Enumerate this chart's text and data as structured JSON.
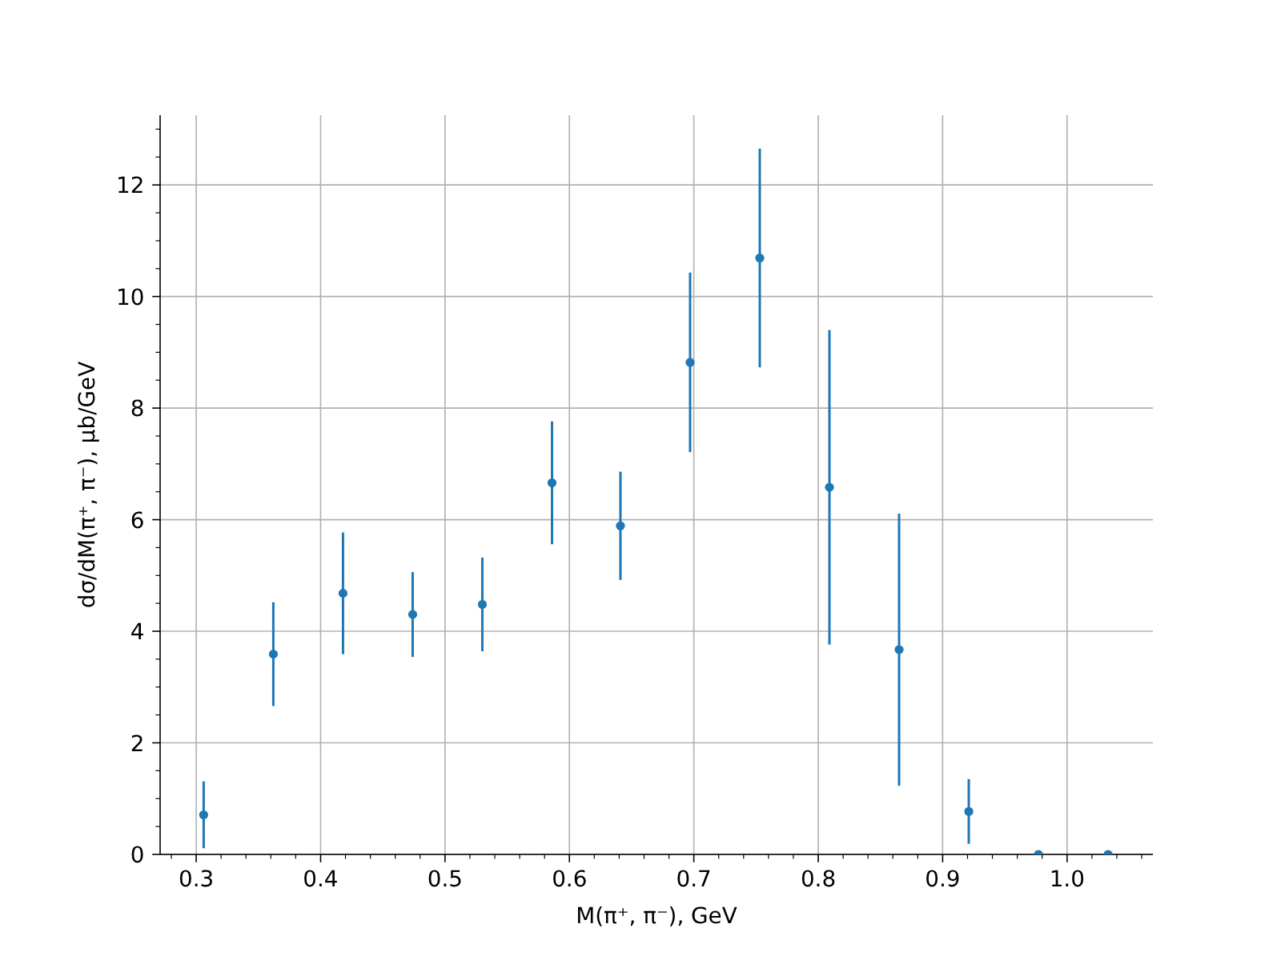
{
  "chart_data": {
    "type": "scatter",
    "xlabel": "M(π⁺, π⁻), GeV",
    "ylabel": "dσ/dM(π⁺, π⁻), μb/GeV",
    "x": [
      0.306,
      0.362,
      0.418,
      0.474,
      0.53,
      0.586,
      0.641,
      0.697,
      0.753,
      0.809,
      0.865,
      0.921,
      0.977,
      1.033
    ],
    "values": [
      0.71,
      3.59,
      4.68,
      4.3,
      4.48,
      6.66,
      5.89,
      8.82,
      10.69,
      6.58,
      3.67,
      0.77,
      0,
      0
    ],
    "errors": [
      0.6,
      0.93,
      1.09,
      0.76,
      0.84,
      1.1,
      0.97,
      1.61,
      1.96,
      2.82,
      2.44,
      0.58,
      null,
      null
    ],
    "color": "#1f77b4",
    "marker": "circle",
    "grid": true,
    "xlim": [
      0.271,
      1.069
    ],
    "ylim": [
      0,
      13.25
    ],
    "xticks": [
      {
        "value": 0.28,
        "label": null
      },
      0.3,
      {
        "value": 0.32,
        "label": null
      },
      {
        "value": 0.34,
        "label": null
      },
      {
        "value": 0.36,
        "label": null
      },
      {
        "value": 0.38,
        "label": null
      },
      0.4,
      {
        "value": 0.42,
        "label": null
      },
      {
        "value": 0.44,
        "label": null
      },
      {
        "value": 0.46,
        "label": null
      },
      {
        "value": 0.48,
        "label": null
      },
      0.5,
      {
        "value": 0.52,
        "label": null
      },
      {
        "value": 0.54,
        "label": null
      },
      {
        "value": 0.56,
        "label": null
      },
      {
        "value": 0.58,
        "label": null
      },
      0.6,
      {
        "value": 0.62,
        "label": null
      },
      {
        "value": 0.64,
        "label": null
      },
      {
        "value": 0.66,
        "label": null
      },
      {
        "value": 0.68,
        "label": null
      },
      0.7,
      {
        "value": 0.72,
        "label": null
      },
      {
        "value": 0.74,
        "label": null
      },
      {
        "value": 0.76,
        "label": null
      },
      {
        "value": 0.78,
        "label": null
      },
      0.8,
      {
        "value": 0.82,
        "label": null
      },
      {
        "value": 0.84,
        "label": null
      },
      {
        "value": 0.86,
        "label": null
      },
      {
        "value": 0.88,
        "label": null
      },
      0.9,
      {
        "value": 0.92,
        "label": null
      },
      {
        "value": 0.94,
        "label": null
      },
      {
        "value": 0.96,
        "label": null
      },
      {
        "value": 0.98,
        "label": null
      },
      {
        "value": 1,
        "label": "1.0"
      },
      {
        "value": 1.02,
        "label": null
      },
      {
        "value": 1.04,
        "label": null
      },
      {
        "value": 1.06,
        "label": null
      }
    ],
    "yticks": [
      0,
      {
        "value": 0.5,
        "label": null
      },
      {
        "value": 1,
        "label": null
      },
      {
        "value": 1.5,
        "label": null
      },
      2,
      {
        "value": 2.5,
        "label": null
      },
      {
        "value": 3,
        "label": null
      },
      {
        "value": 3.5,
        "label": null
      },
      4,
      {
        "value": 4.5,
        "label": null
      },
      {
        "value": 5,
        "label": null
      },
      {
        "value": 5.5,
        "label": null
      },
      6,
      {
        "value": 6.5,
        "label": null
      },
      {
        "value": 7,
        "label": null
      },
      {
        "value": 7.5,
        "label": null
      },
      8,
      {
        "value": 8.5,
        "label": null
      },
      {
        "value": 9,
        "label": null
      },
      {
        "value": 9.5,
        "label": null
      },
      10,
      {
        "value": 10.5,
        "label": null
      },
      {
        "value": 11,
        "label": null
      },
      {
        "value": 11.5,
        "label": null
      },
      12,
      {
        "value": 12.5,
        "label": null
      },
      {
        "value": 13,
        "label": null
      }
    ]
  }
}
